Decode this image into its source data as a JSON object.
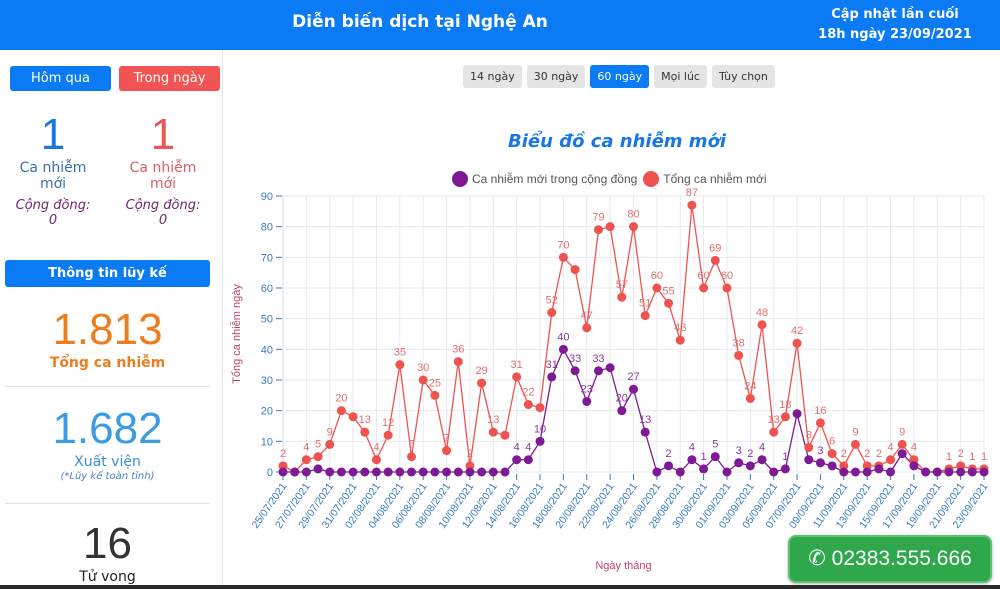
{
  "header": {
    "title": "Diễn biến dịch tại Nghệ An",
    "updated_line1": "Cập nhật lần cuối",
    "updated_line2": "18h ngày 23/09/2021"
  },
  "sidebar": {
    "tabs": [
      {
        "label": "Hôm qua"
      },
      {
        "label": "Trong ngày"
      }
    ],
    "yesterday": {
      "value": "1",
      "label": "Ca nhiễm mới",
      "community_label": "Cộng đồng:",
      "community_value": "0"
    },
    "today": {
      "value": "1",
      "label": "Ca nhiễm mới",
      "community_label": "Cộng đồng:",
      "community_value": "0"
    },
    "cumulative_header": "Thông tin lũy kế",
    "total_cases": {
      "value": "1.813",
      "label": "Tổng ca nhiễm"
    },
    "recovered": {
      "value": "1.682",
      "label": "Xuất viện",
      "note": "(*Lũy kế toàn tỉnh)"
    },
    "deaths": {
      "value": "16",
      "label": "Tử vong"
    }
  },
  "ranges": [
    {
      "label": "14 ngày",
      "active": false
    },
    {
      "label": "30 ngày",
      "active": false
    },
    {
      "label": "60 ngày",
      "active": true
    },
    {
      "label": "Mọi lúc",
      "active": false
    },
    {
      "label": "Tùy chọn",
      "active": false
    }
  ],
  "hotline": "02383.555.666",
  "colors": {
    "primary": "#0a7bf5",
    "red": "#f25454",
    "community": "#7d1a94",
    "total": "#ef5350",
    "orange": "#ee7d1d",
    "green": "#2ea84a"
  },
  "chart_data": {
    "type": "line",
    "title": "Biểu đồ ca nhiễm mới",
    "xlabel": "Ngày tháng",
    "ylabel": "Tổng ca nhiễm ngày",
    "ylim": [
      0,
      90
    ],
    "yticks": [
      0,
      10,
      20,
      30,
      40,
      50,
      60,
      70,
      80,
      90
    ],
    "grid": true,
    "legend": "top",
    "xtick_labels": [
      "25/07/2021",
      "27/07/2021",
      "29/07/2021",
      "31/07/2021",
      "02/08/2021",
      "04/08/2021",
      "06/08/2021",
      "08/08/2021",
      "10/08/2021",
      "12/08/2021",
      "14/08/2021",
      "16/08/2021",
      "18/08/2021",
      "20/08/2021",
      "22/08/2021",
      "24/08/2021",
      "26/08/2021",
      "28/08/2021",
      "30/08/2021",
      "01/09/2021",
      "03/09/2021",
      "05/09/2021",
      "07/09/2021",
      "09/09/2021",
      "11/09/2021",
      "13/09/2021",
      "15/09/2021",
      "17/09/2021",
      "19/09/2021",
      "21/09/2021",
      "23/09/2021"
    ],
    "x": [
      "25/07",
      "26/07",
      "27/07",
      "28/07",
      "29/07",
      "30/07",
      "31/07",
      "01/08",
      "02/08",
      "03/08",
      "04/08",
      "05/08",
      "06/08",
      "07/08",
      "08/08",
      "09/08",
      "10/08",
      "11/08",
      "12/08",
      "13/08",
      "14/08",
      "15/08",
      "16/08",
      "17/08",
      "18/08",
      "19/08",
      "20/08",
      "21/08",
      "22/08",
      "23/08",
      "24/08",
      "25/08",
      "26/08",
      "27/08",
      "28/08",
      "29/08",
      "30/08",
      "31/08",
      "01/09",
      "02/09",
      "03/09",
      "04/09",
      "05/09",
      "06/09",
      "07/09",
      "08/09",
      "09/09",
      "10/09",
      "11/09",
      "12/09",
      "13/09",
      "14/09",
      "15/09",
      "16/09",
      "17/09",
      "18/09",
      "19/09",
      "20/09",
      "21/09",
      "22/09",
      "23/09"
    ],
    "series": [
      {
        "name": "Ca nhiễm mới trong cộng đồng",
        "color": "#7d1a94",
        "values": [
          0,
          0,
          0,
          1,
          0,
          0,
          0,
          0,
          0,
          0,
          0,
          0,
          0,
          0,
          0,
          0,
          0,
          0,
          0,
          0,
          4,
          4,
          10,
          31,
          40,
          33,
          23,
          33,
          34,
          20,
          27,
          13,
          0,
          2,
          0,
          4,
          1,
          5,
          0,
          3,
          2,
          4,
          0,
          1,
          19,
          4,
          3,
          2,
          0,
          0,
          0,
          1,
          0,
          6,
          2,
          0,
          0,
          0,
          0,
          0,
          0
        ],
        "labeled": [
          0,
          0,
          0,
          0,
          0,
          0,
          0,
          0,
          0,
          0,
          0,
          0,
          0,
          0,
          0,
          0,
          0,
          0,
          0,
          0,
          1,
          1,
          1,
          1,
          1,
          1,
          1,
          1,
          0,
          1,
          1,
          1,
          0,
          1,
          0,
          1,
          1,
          1,
          0,
          1,
          1,
          1,
          0,
          1,
          0,
          0,
          1,
          0,
          0,
          0,
          0,
          0,
          0,
          0,
          0,
          0,
          0,
          0,
          0,
          0,
          0
        ]
      },
      {
        "name": "Tổng ca nhiễm mới",
        "color": "#ef5350",
        "values": [
          2,
          0,
          4,
          5,
          9,
          20,
          18,
          13,
          4,
          12,
          35,
          5,
          30,
          25,
          7,
          36,
          2,
          29,
          13,
          12,
          31,
          22,
          21,
          52,
          70,
          66,
          47,
          79,
          80,
          57,
          80,
          51,
          60,
          55,
          43,
          87,
          60,
          69,
          60,
          38,
          24,
          48,
          13,
          18,
          42,
          8,
          16,
          6,
          2,
          9,
          2,
          2,
          4,
          9,
          4,
          0,
          0,
          1,
          2,
          1,
          1
        ],
        "labeled": [
          1,
          0,
          1,
          1,
          1,
          1,
          0,
          1,
          1,
          1,
          1,
          1,
          1,
          1,
          1,
          1,
          1,
          1,
          1,
          0,
          1,
          1,
          0,
          1,
          1,
          0,
          1,
          1,
          0,
          1,
          1,
          1,
          1,
          1,
          1,
          1,
          1,
          1,
          1,
          1,
          1,
          1,
          1,
          1,
          1,
          1,
          1,
          1,
          1,
          1,
          1,
          1,
          1,
          1,
          1,
          0,
          0,
          1,
          1,
          1,
          1
        ]
      }
    ]
  }
}
